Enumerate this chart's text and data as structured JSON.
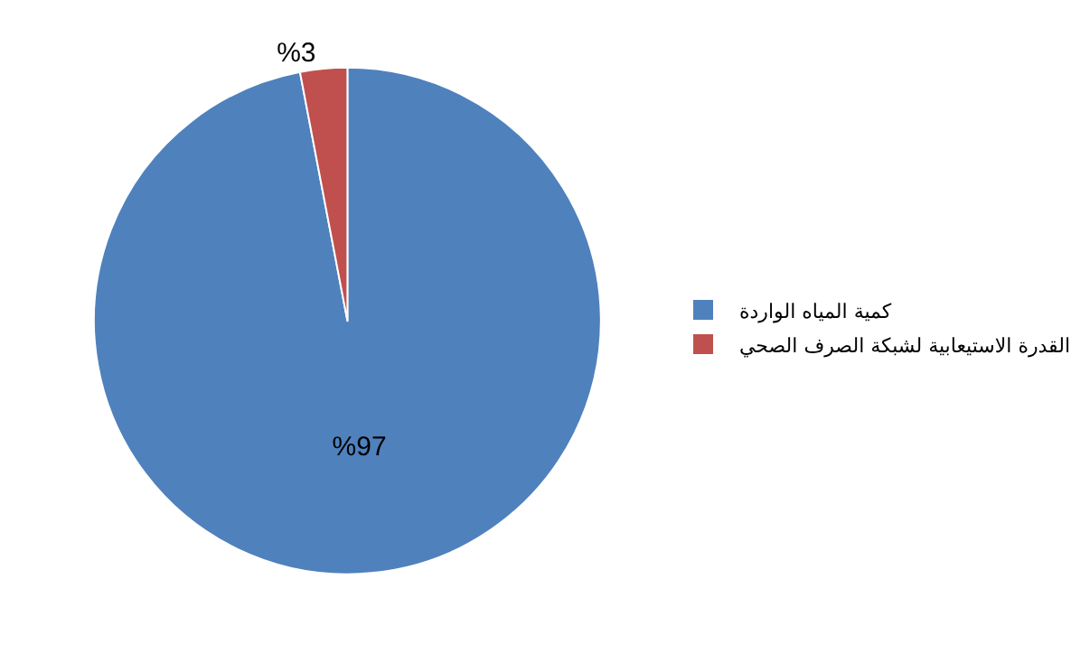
{
  "chart_data": {
    "type": "pie",
    "categories": [
      "كمية المياه الواردة",
      "القدرة الاستيعابية لشبكة الصرف الصحي"
    ],
    "values": [
      97,
      3
    ],
    "colors": [
      "#4f81bd",
      "#c0504d"
    ],
    "value_labels": [
      "%97",
      "%3"
    ],
    "legend": "right"
  }
}
